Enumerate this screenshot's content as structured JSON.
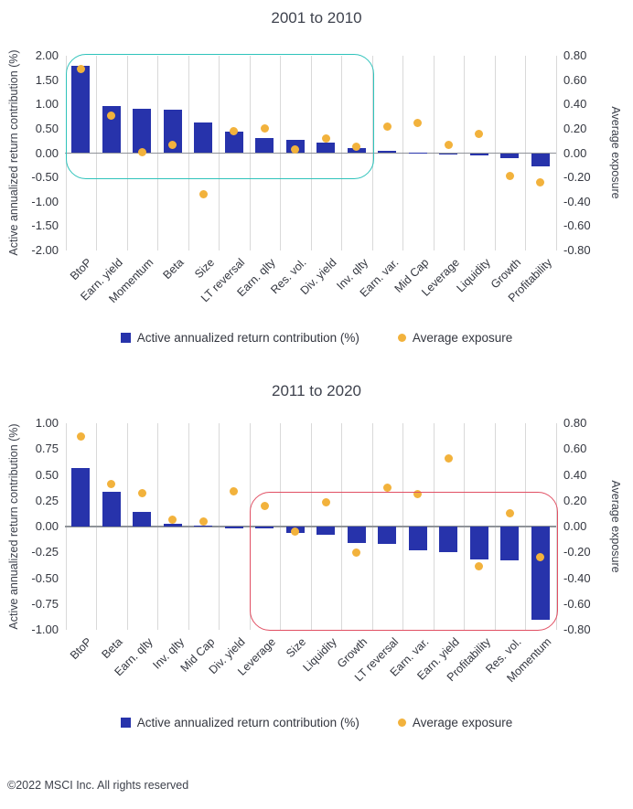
{
  "page": {
    "footer": "©2022 MSCI Inc. All rights reserved"
  },
  "theme": {
    "bar_color": "#2733ab",
    "dot_color": "#f2b23c",
    "grid_color": "#d9d9d9",
    "zero_line_color": "#8f9399",
    "text_color": "#3a3e49",
    "highlight_teal": "#2fc3bb",
    "highlight_red": "#e14f63"
  },
  "legend": {
    "bar_label": "Active annualized return contribution (%)",
    "dot_label": "Average exposure"
  },
  "chart_data": [
    {
      "type": "bar",
      "title": "2001 to 2010",
      "categories": [
        "BtoP",
        "Earn. yield",
        "Momentum",
        "Beta",
        "Size",
        "LT reversal",
        "Earn. qlty",
        "Res. vol.",
        "Div. yield",
        "Inv. qlty",
        "Earn. var.",
        "Mid Cap",
        "Leverage",
        "Liquidity",
        "Growth",
        "Profitability"
      ],
      "series": [
        {
          "name": "Active annualized return contribution (%)",
          "type": "bar",
          "axis": "left",
          "values": [
            1.8,
            0.97,
            0.92,
            0.9,
            0.62,
            0.44,
            0.31,
            0.27,
            0.21,
            0.1,
            0.04,
            0.01,
            -0.03,
            -0.05,
            -0.1,
            -0.28
          ]
        },
        {
          "name": "Average exposure",
          "type": "scatter",
          "axis": "right",
          "values": [
            0.69,
            0.31,
            0.01,
            0.07,
            -0.34,
            0.18,
            0.2,
            0.03,
            0.12,
            0.05,
            0.22,
            0.25,
            0.07,
            0.16,
            -0.19,
            -0.24
          ]
        }
      ],
      "left_axis": {
        "title": "Active annualized return contribution (%)",
        "min": -2.0,
        "max": 2.0,
        "step": 0.5
      },
      "right_axis": {
        "title": "Average exposure",
        "min": -0.8,
        "max": 0.8,
        "step": 0.2
      },
      "grid": "vertical-only",
      "legend_position": "bottom",
      "highlight": {
        "from_index": 0,
        "to_index": 9,
        "top": 2.03,
        "bottom": -0.5,
        "color": "#2fc3bb"
      }
    },
    {
      "type": "bar",
      "title": "2011 to 2020",
      "categories": [
        "BtoP",
        "Beta",
        "Earn. qlty",
        "Inv. qlty",
        "Mid Cap",
        "Div. yield",
        "Leverage",
        "Size",
        "Liquidity",
        "Growth",
        "LT reversal",
        "Earn. var.",
        "Earn. yield",
        "Profitability",
        "Res. vol.",
        "Momentum"
      ],
      "series": [
        {
          "name": "Active annualized return contribution (%)",
          "type": "bar",
          "axis": "left",
          "values": [
            0.57,
            0.34,
            0.14,
            0.03,
            0.01,
            -0.02,
            -0.02,
            -0.06,
            -0.08,
            -0.16,
            -0.17,
            -0.23,
            -0.25,
            -0.32,
            -0.33,
            -0.9
          ]
        },
        {
          "name": "Average exposure",
          "type": "scatter",
          "axis": "right",
          "values": [
            0.7,
            0.33,
            0.26,
            0.05,
            0.04,
            0.27,
            0.16,
            -0.04,
            0.19,
            -0.2,
            0.3,
            0.25,
            0.53,
            -0.31,
            0.1,
            -0.24
          ]
        }
      ],
      "left_axis": {
        "title": "Active annualized return contribution (%)",
        "min": -1.0,
        "max": 1.0,
        "step": 0.25
      },
      "right_axis": {
        "title": "Average exposure",
        "min": -0.8,
        "max": 0.8,
        "step": 0.2
      },
      "grid": "vertical-only",
      "legend_position": "bottom",
      "highlight": {
        "from_index": 6,
        "to_index": 15,
        "top": 0.34,
        "bottom": -0.99,
        "color": "#e14f63"
      }
    }
  ]
}
